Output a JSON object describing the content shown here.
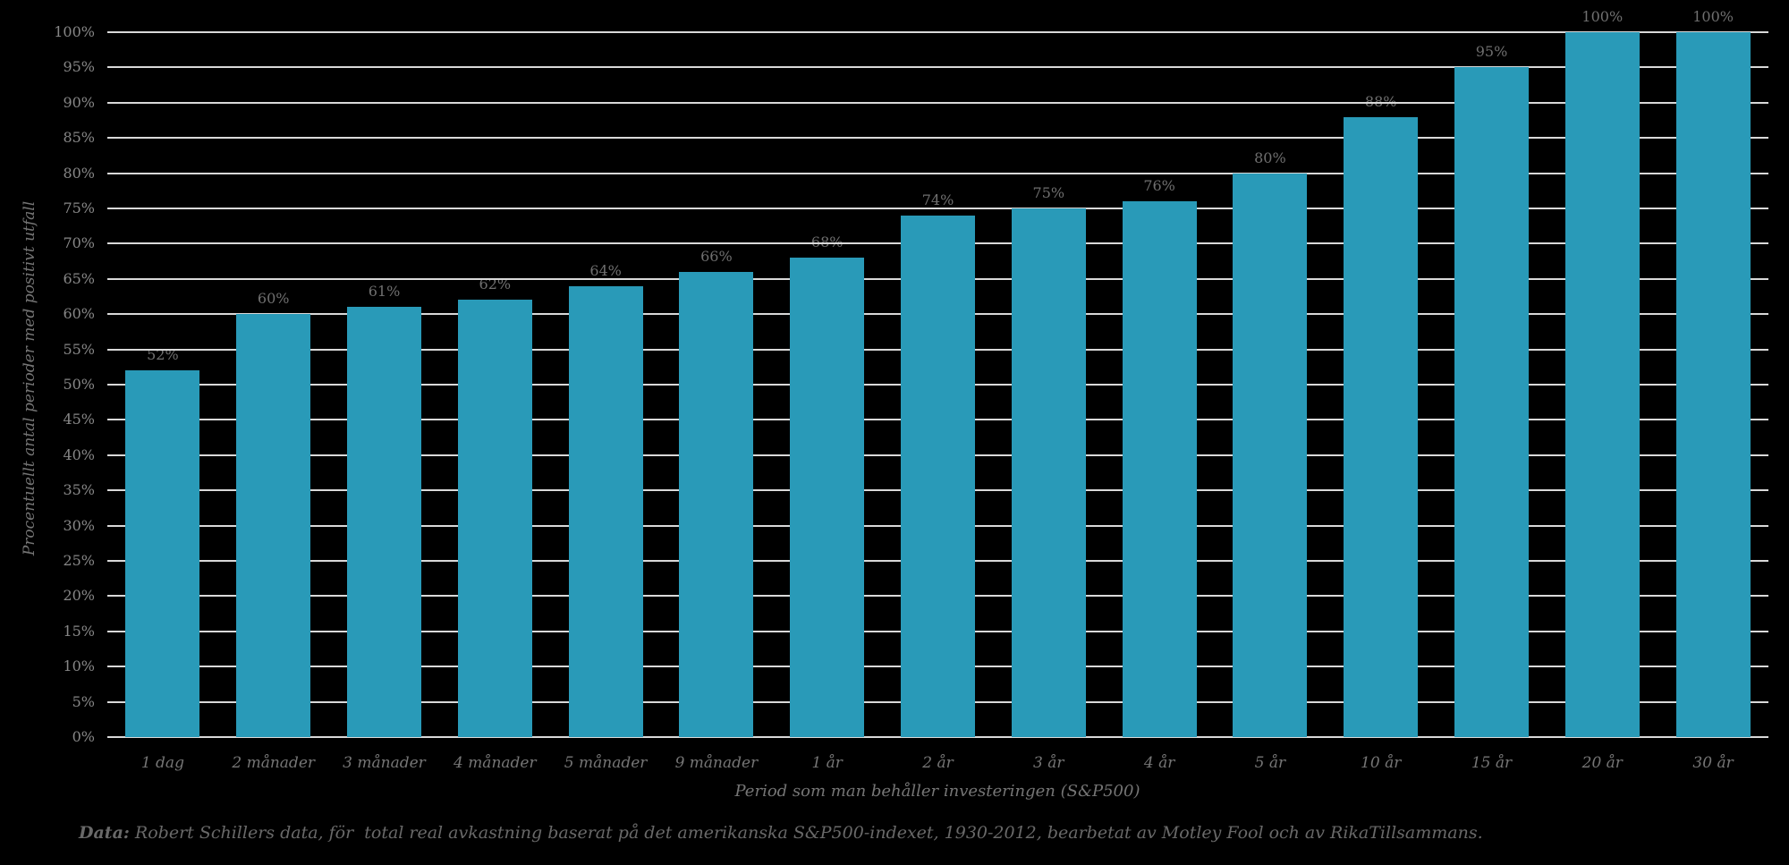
{
  "chart_data": {
    "type": "bar",
    "categories": [
      "1 dag",
      "2 månader",
      "3 månader",
      "4 månader",
      "5 månader",
      "9 månader",
      "1 år",
      "2 år",
      "3 år",
      "4 år",
      "5 år",
      "10 år",
      "15 år",
      "20 år",
      "30 år"
    ],
    "values": [
      52,
      60,
      61,
      62,
      64,
      66,
      68,
      74,
      75,
      76,
      80,
      88,
      95,
      100,
      100
    ],
    "data_labels": [
      "52%",
      "60%",
      "61%",
      "62%",
      "64%",
      "66%",
      "68%",
      "74%",
      "75%",
      "76%",
      "80%",
      "88%",
      "95%",
      "100%",
      "100%"
    ],
    "title": "",
    "xlabel": "Period som man behåller investeringen (S&P500)",
    "ylabel": "Procentuellt antal perioder med positivt utfall",
    "ylim": [
      0,
      100
    ],
    "ytick_step": 5,
    "ytick_suffix": "%",
    "grid": true,
    "legend_position": "none",
    "colors": {
      "background": "#000000",
      "bar_fill": "#299AB8",
      "gridline": "#D9D9D9",
      "y_tick_text": "#878787",
      "bar_label_text": "#6F6F6F",
      "x_tick_text": "#757575",
      "axis_title_text": "#757575",
      "source_note_text": "#696969"
    }
  },
  "source_note": {
    "prefix": "Data:",
    "text": " Robert Schillers data, för  total real avkastning baserat på det amerikanska S&P500-indexet, 1930-2012, bearbetat av Motley Fool och av RikaTillsammans."
  }
}
